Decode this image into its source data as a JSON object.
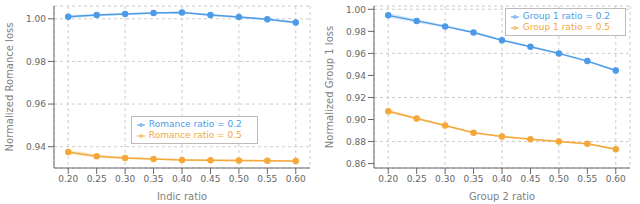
{
  "chart_data": [
    {
      "type": "line",
      "x_label": "Indic ratio",
      "y_label": "Normalized Romance loss",
      "x": [
        0.2,
        0.25,
        0.3,
        0.35,
        0.4,
        0.45,
        0.5,
        0.55,
        0.6
      ],
      "xlim": [
        0.175,
        0.625
      ],
      "xticks": [
        {
          "value": 0.2,
          "label": "0.20"
        },
        0.25,
        {
          "value": 0.3,
          "label": "0.30"
        },
        0.35,
        {
          "value": 0.4,
          "label": "0.40"
        },
        0.45,
        {
          "value": 0.5,
          "label": "0.50"
        },
        0.55,
        {
          "value": 0.6,
          "label": "0.60"
        }
      ],
      "ylim": [
        0.93,
        1.006
      ],
      "yticks": [
        0.94,
        0.96,
        0.98,
        {
          "value": 1.0,
          "label": "1.00"
        }
      ],
      "grid": true,
      "legend": "lower left",
      "series": [
        {
          "name": "Romance ratio = 0.2",
          "color": "#4C9BE8",
          "marker": "circle",
          "values": [
            1.001,
            1.0018,
            1.0022,
            1.0027,
            1.003,
            1.0018,
            1.0008,
            0.9998,
            0.9983
          ],
          "error": [
            0.0008,
            0.0006,
            0.0005,
            0.0005,
            0.0005,
            0.0005,
            0.0005,
            0.0005,
            0.0006
          ]
        },
        {
          "name": "Romance ratio = 0.5",
          "color": "#F5A83A",
          "marker": "circle",
          "values": [
            0.9375,
            0.9355,
            0.9347,
            0.9342,
            0.9338,
            0.9336,
            0.9335,
            0.9334,
            0.9333
          ],
          "error": [
            0.0012,
            0.0008,
            0.0006,
            0.0005,
            0.0005,
            0.0005,
            0.0005,
            0.0005,
            0.0005
          ]
        }
      ]
    },
    {
      "type": "line",
      "x_label": "Group 2 ratio",
      "y_label": "Normalized Group 1 loss",
      "x": [
        0.2,
        0.25,
        0.3,
        0.35,
        0.4,
        0.45,
        0.5,
        0.55,
        0.6
      ],
      "xlim": [
        0.175,
        0.625
      ],
      "xticks": [
        {
          "value": 0.2,
          "label": "0.20"
        },
        0.25,
        {
          "value": 0.3,
          "label": "0.30"
        },
        0.35,
        {
          "value": 0.4,
          "label": "0.40"
        },
        0.45,
        {
          "value": 0.5,
          "label": "0.50"
        },
        0.55,
        {
          "value": 0.6,
          "label": "0.60"
        }
      ],
      "ylim": [
        0.856,
        1.003
      ],
      "yticks": [
        0.86,
        0.88,
        {
          "value": 0.9,
          "label": "0.90"
        },
        0.92,
        0.94,
        0.96,
        0.98,
        {
          "value": 1.0,
          "label": "1.00"
        }
      ],
      "grid": true,
      "legend": "upper right",
      "series": [
        {
          "name": "Group 1 ratio = 0.2",
          "color": "#4C9BE8",
          "marker": "circle",
          "values": [
            0.9945,
            0.9895,
            0.9845,
            0.979,
            0.972,
            0.966,
            0.96,
            0.953,
            0.9445
          ],
          "error": [
            0.0022,
            0.0016,
            0.0012,
            0.001,
            0.0009,
            0.0009,
            0.0009,
            0.0009,
            0.0009
          ]
        },
        {
          "name": "Group 1 ratio = 0.5",
          "color": "#F5A83A",
          "marker": "circle",
          "values": [
            0.9075,
            0.901,
            0.8945,
            0.888,
            0.8845,
            0.882,
            0.88,
            0.878,
            0.873
          ],
          "error": [
            0.0018,
            0.0013,
            0.001,
            0.0009,
            0.0009,
            0.0009,
            0.0009,
            0.0009,
            0.0009
          ]
        }
      ]
    }
  ]
}
